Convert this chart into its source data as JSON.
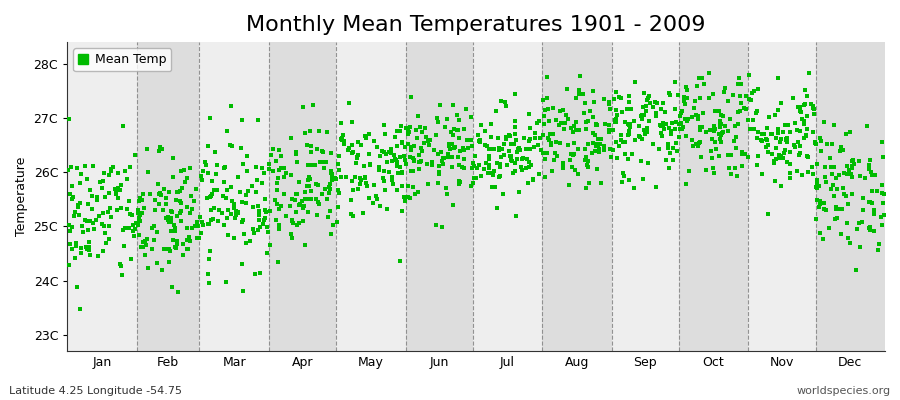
{
  "title": "Monthly Mean Temperatures 1901 - 2009",
  "ylabel": "Temperature",
  "xlabel_labels": [
    "Jan",
    "Feb",
    "Mar",
    "Apr",
    "May",
    "Jun",
    "Jul",
    "Aug",
    "Sep",
    "Oct",
    "Nov",
    "Dec"
  ],
  "ytick_labels": [
    "23C",
    "24C",
    "25C",
    "26C",
    "27C",
    "28C"
  ],
  "ytick_values": [
    23,
    24,
    25,
    26,
    27,
    28
  ],
  "ylim": [
    22.7,
    28.4
  ],
  "legend_label": "Mean Temp",
  "marker_color": "#00bb00",
  "marker": "s",
  "marker_size": 2.5,
  "background_color_light": "#eeeeee",
  "background_color_dark": "#dddddd",
  "footer_left": "Latitude 4.25 Longitude -54.75",
  "footer_right": "worldspecies.org",
  "title_fontsize": 16,
  "label_fontsize": 9,
  "tick_fontsize": 9,
  "footer_fontsize": 8,
  "monthly_means": [
    25.2,
    25.1,
    25.5,
    25.8,
    26.1,
    26.3,
    26.4,
    26.6,
    26.8,
    26.9,
    26.7,
    25.7
  ],
  "monthly_stds": [
    0.65,
    0.62,
    0.62,
    0.55,
    0.5,
    0.45,
    0.42,
    0.45,
    0.48,
    0.52,
    0.52,
    0.58
  ],
  "n_years": 109,
  "seed": 42,
  "dashed_line_color": "#888888",
  "days_per_month": [
    31,
    28,
    31,
    30,
    31,
    30,
    31,
    31,
    30,
    31,
    30,
    31
  ]
}
